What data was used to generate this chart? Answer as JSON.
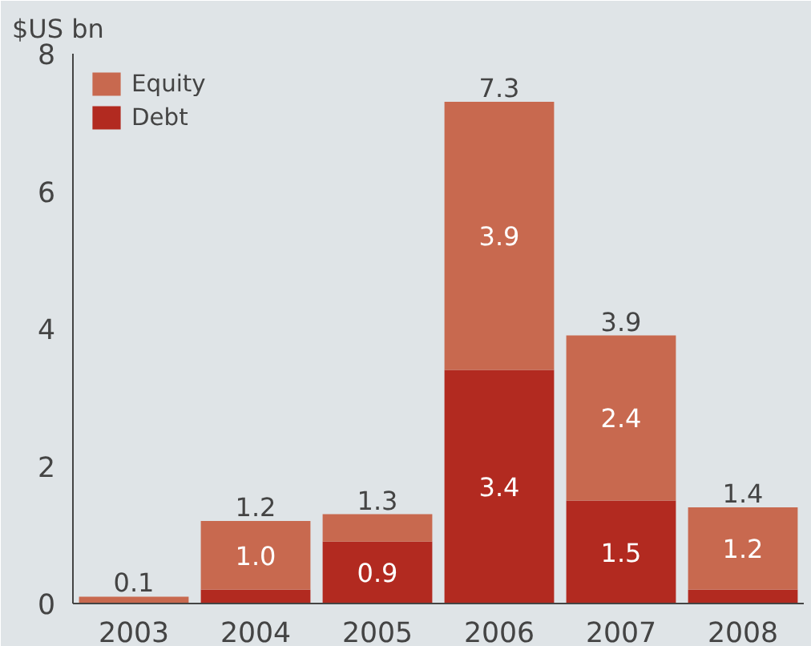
{
  "chart_data": {
    "type": "bar",
    "stacked": true,
    "ylabel": "$US bn",
    "categories": [
      "2003",
      "2004",
      "2005",
      "2006",
      "2007",
      "2008"
    ],
    "series": [
      {
        "name": "Debt",
        "color": "#b22a20",
        "values": [
          0,
          0.2,
          0.9,
          3.4,
          1.5,
          0.2
        ],
        "value_labels": [
          null,
          null,
          "0.9",
          "3.4",
          "1.5",
          null
        ]
      },
      {
        "name": "Equity",
        "color": "#c8694f",
        "values": [
          0.1,
          1.0,
          0.4,
          3.9,
          2.4,
          1.2
        ],
        "value_labels": [
          null,
          "1.0",
          null,
          "3.9",
          "2.4",
          "1.2"
        ]
      }
    ],
    "totals": [
      "0.1",
      "1.2",
      "1.3",
      "7.3",
      "3.9",
      "1.4"
    ],
    "ylim": [
      0,
      8
    ],
    "yticks": [
      0,
      2,
      4,
      6,
      8
    ],
    "grid": false,
    "legend": "top left"
  }
}
